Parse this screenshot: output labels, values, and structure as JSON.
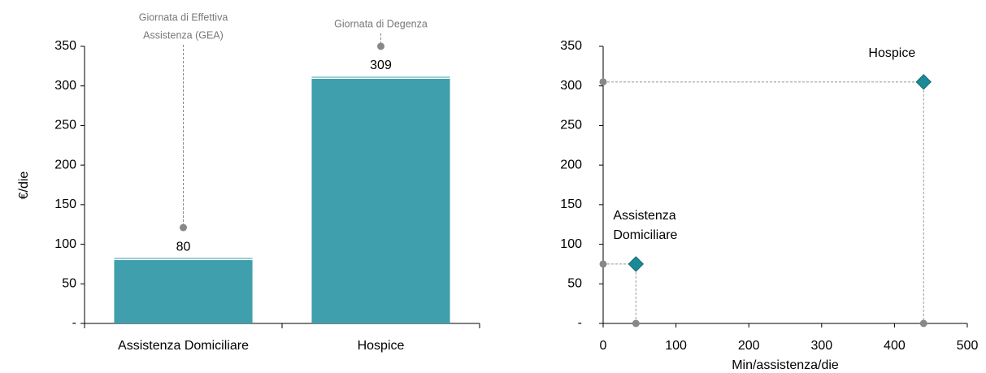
{
  "chart_data": [
    {
      "type": "bar",
      "categories": [
        "Assistenza Domiciliare",
        "Hospice"
      ],
      "values": [
        80,
        309
      ],
      "color": "#3f9fac",
      "ylabel": "€/die",
      "ylim": [
        0,
        350
      ],
      "yticks": [
        {
          "value": 0,
          "label": "-"
        },
        50,
        100,
        150,
        200,
        250,
        300,
        350
      ],
      "annotations": [
        [
          "Giornata di Effettiva",
          "Assistenza (GEA)"
        ],
        [
          "Giornata di Degenza"
        ]
      ]
    },
    {
      "type": "scatter",
      "x": [
        45,
        440
      ],
      "values": [
        75,
        305
      ],
      "labels": [
        [
          "Assistenza",
          "Domiciliare"
        ],
        [
          "Hospice"
        ]
      ],
      "color": "#1a8a96",
      "xlabel": "Min/assistenza/die",
      "xlim": [
        0,
        500
      ],
      "xticks": [
        0,
        100,
        200,
        300,
        400,
        500
      ],
      "ylim": [
        0,
        350
      ],
      "yticks": [
        {
          "value": 0,
          "label": "-"
        },
        50,
        100,
        150,
        200,
        250,
        300,
        350
      ]
    }
  ]
}
